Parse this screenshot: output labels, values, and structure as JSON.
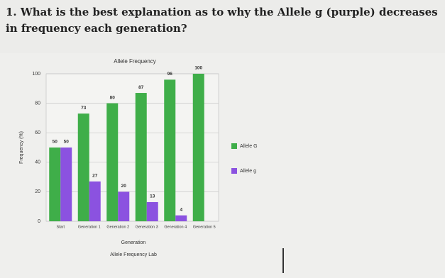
{
  "question": "1. What is the best explanation as to why the Allele g (purple) decreases in frequency each generation?",
  "chart_data": {
    "type": "bar",
    "title": "Allele Frequency",
    "categories": [
      "Start",
      "Generation 1",
      "Generation 2",
      "Generation 3",
      "Generation 4",
      "Generation 5"
    ],
    "series": [
      {
        "name": "Allele G",
        "color": "#3fae49",
        "values": [
          50,
          73,
          80,
          87,
          96,
          100
        ]
      },
      {
        "name": "Allele g",
        "color": "#8b52e0",
        "values": [
          50,
          27,
          20,
          13,
          4,
          0
        ]
      }
    ],
    "ylim": [
      0,
      100
    ],
    "yticks": [
      0,
      20,
      40,
      60,
      80,
      100
    ],
    "grid": true,
    "x_label": "Generation",
    "y_label": "Frequency (%)",
    "caption": "Allele Frequency Lab",
    "legend": "right"
  }
}
